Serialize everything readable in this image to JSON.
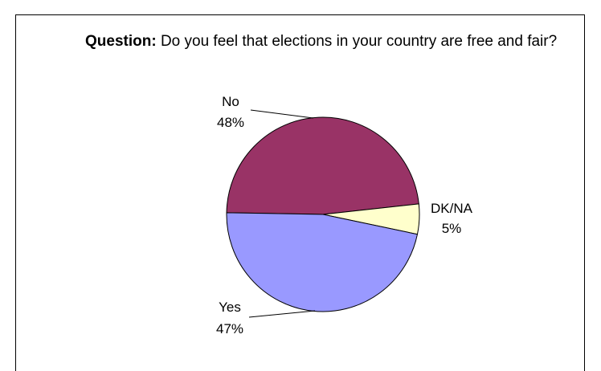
{
  "question": {
    "prefix": "Question:",
    "text": " Do you feel that elections in your country are free and fair?"
  },
  "chart_data": {
    "type": "pie",
    "slices": [
      {
        "name": "No",
        "value": 48,
        "label": "48%",
        "color": "#993366"
      },
      {
        "name": "DK/NA",
        "value": 5,
        "label": "5%",
        "color": "#FFFFCC"
      },
      {
        "name": "Yes",
        "value": 47,
        "label": "47%",
        "color": "#9999FF"
      }
    ]
  }
}
